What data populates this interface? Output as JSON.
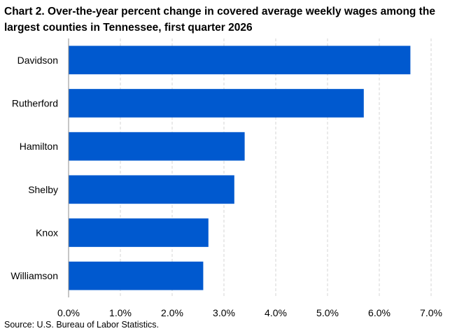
{
  "chart_data": {
    "type": "bar",
    "orientation": "horizontal",
    "title": "Chart 2. Over-the-year percent change in covered average weekly wages among the largest counties in Tennessee, first quarter 2026",
    "categories": [
      "Davidson",
      "Rutherford",
      "Hamilton",
      "Shelby",
      "Knox",
      "Williamson"
    ],
    "values": [
      6.6,
      5.7,
      3.4,
      3.2,
      2.7,
      2.6
    ],
    "xlim": [
      0,
      7.0
    ],
    "xticks": [
      0,
      1,
      2,
      3,
      4,
      5,
      6,
      7
    ],
    "xtick_labels": [
      "0.0%",
      "1.0%",
      "2.0%",
      "3.0%",
      "4.0%",
      "5.0%",
      "6.0%",
      "7.0%"
    ],
    "xlabel": "",
    "ylabel": "",
    "grid": "vertical dashed",
    "legend": "none",
    "bar_color": "#0059CF",
    "source": "Source: U.S. Bureau of Labor Statistics."
  }
}
